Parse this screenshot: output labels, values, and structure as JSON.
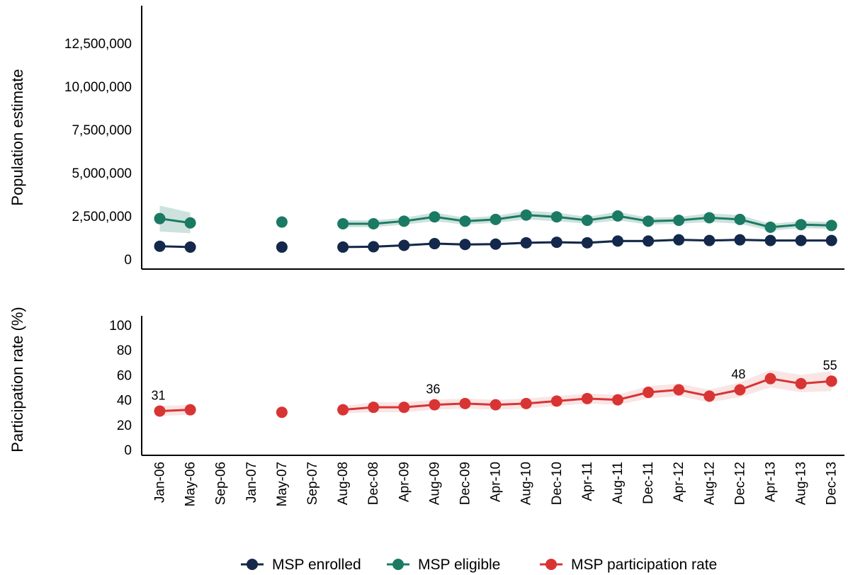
{
  "chart_data": [
    {
      "type": "line",
      "ylabel": "Population estimate",
      "ylim": [
        0,
        14000000
      ],
      "yticks": [
        {
          "value": 0,
          "label": "0"
        },
        {
          "value": 2500000,
          "label": "2,500,000"
        },
        {
          "value": 5000000,
          "label": "5,000,000"
        },
        {
          "value": 7500000,
          "label": "7,500,000"
        },
        {
          "value": 10000000,
          "label": "10,000,000"
        },
        {
          "value": 12500000,
          "label": "12,500,000"
        }
      ],
      "series": [
        {
          "name": "MSP enrolled",
          "color": "#14284b",
          "segments": [
            [
              {
                "x": 0,
                "y": 750000,
                "lo": 700000,
                "hi": 800000
              },
              {
                "x": 1,
                "y": 700000,
                "lo": 650000,
                "hi": 750000
              }
            ],
            [
              {
                "x": 4,
                "y": 700000,
                "lo": 650000,
                "hi": 750000
              }
            ],
            [
              {
                "x": 6,
                "y": 700000,
                "lo": 650000,
                "hi": 760000
              },
              {
                "x": 7,
                "y": 720000,
                "lo": 660000,
                "hi": 790000
              },
              {
                "x": 8,
                "y": 800000,
                "lo": 740000,
                "hi": 870000
              },
              {
                "x": 9,
                "y": 900000,
                "lo": 830000,
                "hi": 970000
              },
              {
                "x": 10,
                "y": 850000,
                "lo": 780000,
                "hi": 920000
              },
              {
                "x": 11,
                "y": 870000,
                "lo": 800000,
                "hi": 940000
              },
              {
                "x": 12,
                "y": 950000,
                "lo": 880000,
                "hi": 1020000
              },
              {
                "x": 13,
                "y": 980000,
                "lo": 910000,
                "hi": 1050000
              },
              {
                "x": 14,
                "y": 950000,
                "lo": 880000,
                "hi": 1030000
              },
              {
                "x": 15,
                "y": 1050000,
                "lo": 980000,
                "hi": 1130000
              },
              {
                "x": 16,
                "y": 1050000,
                "lo": 980000,
                "hi": 1120000
              },
              {
                "x": 17,
                "y": 1120000,
                "lo": 1050000,
                "hi": 1190000
              },
              {
                "x": 18,
                "y": 1080000,
                "lo": 1010000,
                "hi": 1150000
              },
              {
                "x": 19,
                "y": 1120000,
                "lo": 1050000,
                "hi": 1190000
              },
              {
                "x": 20,
                "y": 1080000,
                "lo": 1010000,
                "hi": 1150000
              },
              {
                "x": 21,
                "y": 1080000,
                "lo": 1010000,
                "hi": 1150000
              },
              {
                "x": 22,
                "y": 1080000,
                "lo": 1010000,
                "hi": 1150000
              }
            ]
          ]
        },
        {
          "name": "MSP eligible",
          "color": "#1b7a63",
          "band_color": "#1b7a63",
          "segments": [
            [
              {
                "x": 0,
                "y": 2350000,
                "lo": 1600000,
                "hi": 3100000
              },
              {
                "x": 1,
                "y": 2100000,
                "lo": 1500000,
                "hi": 2700000
              }
            ],
            [
              {
                "x": 4,
                "y": 2150000,
                "lo": 2000000,
                "hi": 2300000
              }
            ],
            [
              {
                "x": 6,
                "y": 2050000,
                "lo": 1850000,
                "hi": 2250000
              },
              {
                "x": 7,
                "y": 2050000,
                "lo": 1850000,
                "hi": 2250000
              },
              {
                "x": 8,
                "y": 2200000,
                "lo": 2000000,
                "hi": 2400000
              },
              {
                "x": 9,
                "y": 2450000,
                "lo": 2200000,
                "hi": 2700000
              },
              {
                "x": 10,
                "y": 2200000,
                "lo": 2000000,
                "hi": 2400000
              },
              {
                "x": 11,
                "y": 2300000,
                "lo": 2100000,
                "hi": 2500000
              },
              {
                "x": 12,
                "y": 2550000,
                "lo": 2300000,
                "hi": 2800000
              },
              {
                "x": 13,
                "y": 2450000,
                "lo": 2200000,
                "hi": 2700000
              },
              {
                "x": 14,
                "y": 2250000,
                "lo": 2050000,
                "hi": 2450000
              },
              {
                "x": 15,
                "y": 2500000,
                "lo": 2250000,
                "hi": 2750000
              },
              {
                "x": 16,
                "y": 2200000,
                "lo": 2000000,
                "hi": 2400000
              },
              {
                "x": 17,
                "y": 2250000,
                "lo": 2050000,
                "hi": 2450000
              },
              {
                "x": 18,
                "y": 2400000,
                "lo": 2150000,
                "hi": 2650000
              },
              {
                "x": 19,
                "y": 2300000,
                "lo": 2050000,
                "hi": 2550000
              },
              {
                "x": 20,
                "y": 1850000,
                "lo": 1650000,
                "hi": 2050000
              },
              {
                "x": 21,
                "y": 2000000,
                "lo": 1800000,
                "hi": 2200000
              },
              {
                "x": 22,
                "y": 1950000,
                "lo": 1750000,
                "hi": 2150000
              }
            ]
          ]
        }
      ]
    },
    {
      "type": "line",
      "ylabel": "Participation rate (%)",
      "ylim": [
        0,
        100
      ],
      "yticks": [
        {
          "value": 0,
          "label": "0"
        },
        {
          "value": 20,
          "label": "20"
        },
        {
          "value": 40,
          "label": "40"
        },
        {
          "value": 60,
          "label": "60"
        },
        {
          "value": 80,
          "label": "80"
        },
        {
          "value": 100,
          "label": "100"
        }
      ],
      "categories": [
        "Jan-06",
        "May-06",
        "Sep-06",
        "Jan-07",
        "May-07",
        "Sep-07",
        "Aug-08",
        "Dec-08",
        "Apr-09",
        "Aug-09",
        "Dec-09",
        "Apr-10",
        "Aug-10",
        "Dec-10",
        "Apr-11",
        "Aug-11",
        "Dec-11",
        "Apr-12",
        "Aug-12",
        "Dec-12",
        "Apr-13",
        "Aug-13",
        "Dec-13"
      ],
      "series": [
        {
          "name": "MSP participation rate",
          "color": "#d93434",
          "band_color": "#e88a8a",
          "segments": [
            [
              {
                "x": 0,
                "y": 31,
                "lo": 27,
                "hi": 35
              },
              {
                "x": 1,
                "y": 32,
                "lo": 28,
                "hi": 36
              }
            ],
            [
              {
                "x": 4,
                "y": 30,
                "lo": 28,
                "hi": 32
              }
            ],
            [
              {
                "x": 6,
                "y": 32,
                "lo": 29,
                "hi": 35
              },
              {
                "x": 7,
                "y": 34,
                "lo": 30,
                "hi": 38
              },
              {
                "x": 8,
                "y": 34,
                "lo": 30,
                "hi": 38
              },
              {
                "x": 9,
                "y": 36,
                "lo": 32,
                "hi": 40
              },
              {
                "x": 10,
                "y": 37,
                "lo": 33,
                "hi": 41
              },
              {
                "x": 11,
                "y": 36,
                "lo": 32,
                "hi": 40
              },
              {
                "x": 12,
                "y": 37,
                "lo": 33,
                "hi": 41
              },
              {
                "x": 13,
                "y": 39,
                "lo": 35,
                "hi": 43
              },
              {
                "x": 14,
                "y": 41,
                "lo": 37,
                "hi": 45
              },
              {
                "x": 15,
                "y": 40,
                "lo": 36,
                "hi": 44
              },
              {
                "x": 16,
                "y": 46,
                "lo": 41,
                "hi": 51
              },
              {
                "x": 17,
                "y": 48,
                "lo": 43,
                "hi": 53
              },
              {
                "x": 18,
                "y": 43,
                "lo": 38,
                "hi": 48
              },
              {
                "x": 19,
                "y": 48,
                "lo": 42,
                "hi": 54
              },
              {
                "x": 20,
                "y": 57,
                "lo": 50,
                "hi": 64
              },
              {
                "x": 21,
                "y": 53,
                "lo": 46,
                "hi": 60
              },
              {
                "x": 22,
                "y": 55,
                "lo": 47,
                "hi": 63
              }
            ]
          ]
        }
      ],
      "data_labels": [
        {
          "x": 0,
          "y": 31,
          "text": "31"
        },
        {
          "x": 9,
          "y": 36,
          "text": "36"
        },
        {
          "x": 19,
          "y": 48,
          "text": "48"
        },
        {
          "x": 22,
          "y": 55,
          "text": "55"
        }
      ]
    }
  ],
  "legend": {
    "placement": "bottom",
    "items": [
      {
        "label": "MSP enrolled",
        "color": "#14284b"
      },
      {
        "label": "MSP eligible",
        "color": "#1b7a63"
      },
      {
        "label": "MSP participation rate",
        "color": "#d93434"
      }
    ]
  }
}
